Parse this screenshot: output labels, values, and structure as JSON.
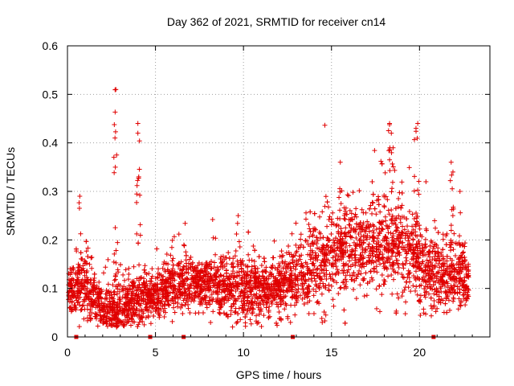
{
  "chart_data": {
    "type": "scatter",
    "title": "Day 362 of 2021, SRMTID for receiver cn14",
    "xlabel": "GPS time / hours",
    "ylabel": "SRMTID / TECUs",
    "xlim": [
      0,
      24
    ],
    "ylim": [
      0,
      0.6
    ],
    "x_ticks": [
      0,
      5,
      10,
      15,
      20
    ],
    "y_ticks": [
      0,
      0.1,
      0.2,
      0.3,
      0.4,
      0.5,
      0.6
    ],
    "x_tick_labels": [
      "0",
      "5",
      "10",
      "15",
      "20"
    ],
    "y_tick_labels": [
      "0",
      "0.1",
      "0.2",
      "0.3",
      "0.4",
      "0.5",
      "0.6"
    ],
    "grid": true,
    "marker": "plus",
    "series": [
      {
        "name": "SRMTID",
        "color": "#e00000",
        "point_count_approx": 4000,
        "trend_x_hours": [
          0,
          1,
          2,
          3,
          4,
          5,
          6,
          7,
          8,
          9,
          10,
          11,
          12,
          13,
          14,
          15,
          16,
          17,
          18,
          19,
          20,
          21,
          22,
          22.8
        ],
        "trend_median_tecu": [
          0.09,
          0.1,
          0.06,
          0.06,
          0.08,
          0.09,
          0.1,
          0.11,
          0.11,
          0.1,
          0.1,
          0.1,
          0.1,
          0.12,
          0.14,
          0.17,
          0.18,
          0.19,
          0.19,
          0.18,
          0.15,
          0.12,
          0.13,
          0.12
        ],
        "trend_spread_tecu": [
          0.03,
          0.05,
          0.03,
          0.04,
          0.04,
          0.03,
          0.04,
          0.04,
          0.04,
          0.04,
          0.04,
          0.04,
          0.04,
          0.05,
          0.06,
          0.06,
          0.06,
          0.06,
          0.07,
          0.07,
          0.06,
          0.05,
          0.05,
          0.04
        ],
        "spikes": [
          {
            "x": 0.7,
            "y": 0.29
          },
          {
            "x": 2.75,
            "y": 0.51
          },
          {
            "x": 2.7,
            "y": 0.41
          },
          {
            "x": 2.72,
            "y": 0.35
          },
          {
            "x": 4.0,
            "y": 0.44
          },
          {
            "x": 4.0,
            "y": 0.42
          },
          {
            "x": 4.05,
            "y": 0.33
          },
          {
            "x": 9.7,
            "y": 0.25
          },
          {
            "x": 15.5,
            "y": 0.36
          },
          {
            "x": 18.3,
            "y": 0.44
          },
          {
            "x": 18.4,
            "y": 0.42
          },
          {
            "x": 18.5,
            "y": 0.39
          },
          {
            "x": 19.9,
            "y": 0.44
          },
          {
            "x": 19.8,
            "y": 0.43
          },
          {
            "x": 21.8,
            "y": 0.36
          },
          {
            "x": 21.9,
            "y": 0.34
          },
          {
            "x": 22.3,
            "y": 0.3
          }
        ]
      }
    ],
    "axis_gap_markers_x": [
      0.5,
      4.7,
      6.6,
      12.8,
      20.8
    ]
  }
}
